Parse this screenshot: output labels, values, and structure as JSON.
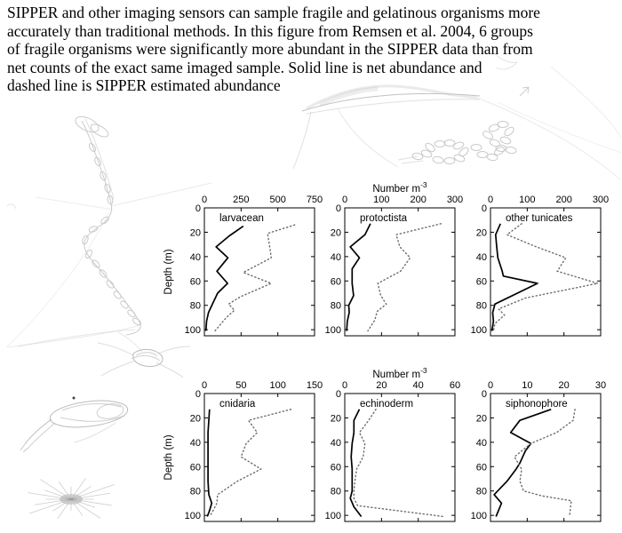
{
  "caption_lines": [
    "SIPPER and other imaging sensors can sample fragile and gelatinous organisms more",
    "accurately than traditional methods. In this figure from Remsen et al. 2004, 6 groups",
    "of fragile organisms were significantly more abundant in the SIPPER data than from",
    "net counts of the exact same imaged sample. Solid line is net abundance and",
    "dashed line is SIPPER estimated abundance"
  ],
  "colors": {
    "axis": "#000000",
    "line_net": "#000000",
    "line_sipper": "#6b6b6b",
    "background": "#ffffff",
    "decor": "#a8a8a8"
  },
  "legend": {
    "solid_line": "net abundance",
    "dashed_line": "SIPPER estimated abundance"
  },
  "chart_data": [
    {
      "type": "line",
      "title": "larvacean",
      "ylabel": "Depth (m)",
      "x_axis_title": null,
      "x_max": 750,
      "x_ticks": [
        0,
        250,
        500,
        750
      ],
      "y_ticks": [
        0,
        20,
        40,
        60,
        80,
        100
      ],
      "y_range": [
        0,
        105
      ],
      "series": [
        {
          "name": "net abundance",
          "style": "solid",
          "points": [
            [
              265,
              15
            ],
            [
              170,
              23
            ],
            [
              80,
              32
            ],
            [
              160,
              41
            ],
            [
              85,
              52
            ],
            [
              158,
              62
            ],
            [
              90,
              70
            ],
            [
              55,
              79
            ],
            [
              28,
              86
            ],
            [
              15,
              93
            ],
            [
              10,
              101
            ]
          ]
        },
        {
          "name": "SIPPER estimated abundance",
          "style": "dotted",
          "points": [
            [
              615,
              14
            ],
            [
              430,
              21
            ],
            [
              450,
              36
            ],
            [
              455,
              41
            ],
            [
              265,
              53
            ],
            [
              455,
              62
            ],
            [
              245,
              73
            ],
            [
              165,
              79
            ],
            [
              205,
              84
            ],
            [
              150,
              90
            ],
            [
              72,
              101
            ]
          ]
        }
      ]
    },
    {
      "type": "line",
      "title": "protoctista",
      "ylabel": null,
      "x_axis_title": {
        "base": "Number m",
        "sup": "-3"
      },
      "x_max": 300,
      "x_ticks": [
        0,
        100,
        200,
        300
      ],
      "y_ticks": [
        0,
        20,
        40,
        60,
        80,
        100
      ],
      "y_range": [
        0,
        105
      ],
      "series": [
        {
          "name": "net abundance",
          "style": "solid",
          "points": [
            [
              70,
              13
            ],
            [
              55,
              22
            ],
            [
              15,
              32
            ],
            [
              40,
              41
            ],
            [
              20,
              50
            ],
            [
              20,
              62
            ],
            [
              24,
              72
            ],
            [
              11,
              80
            ],
            [
              12,
              86
            ],
            [
              7,
              93
            ],
            [
              5,
              101
            ]
          ]
        },
        {
          "name": "SIPPER estimated abundance",
          "style": "dotted",
          "points": [
            [
              262,
              13
            ],
            [
              140,
              22
            ],
            [
              150,
              32
            ],
            [
              178,
              41
            ],
            [
              152,
              52
            ],
            [
              90,
              62
            ],
            [
              98,
              72
            ],
            [
              113,
              79
            ],
            [
              88,
              85
            ],
            [
              82,
              92
            ],
            [
              63,
              101
            ]
          ]
        }
      ]
    },
    {
      "type": "line",
      "title": "other tunicates",
      "ylabel": null,
      "x_axis_title": null,
      "x_max": 300,
      "x_ticks": [
        0,
        100,
        200,
        300
      ],
      "y_ticks": [
        0,
        20,
        40,
        60,
        80,
        100
      ],
      "y_range": [
        0,
        105
      ],
      "series": [
        {
          "name": "net abundance",
          "style": "solid",
          "points": [
            [
              27,
              13
            ],
            [
              14,
              22
            ],
            [
              17,
              32
            ],
            [
              20,
              41
            ],
            [
              32,
              52
            ],
            [
              35,
              56
            ],
            [
              128,
              62
            ],
            [
              12,
              79
            ],
            [
              6,
              86
            ],
            [
              8,
              93
            ],
            [
              4,
              101
            ]
          ]
        },
        {
          "name": "SIPPER estimated abundance",
          "style": "dotted",
          "points": [
            [
              85,
              13
            ],
            [
              45,
              22
            ],
            [
              125,
              32
            ],
            [
              205,
              41
            ],
            [
              182,
              52
            ],
            [
              292,
              62
            ],
            [
              95,
              74
            ],
            [
              22,
              83
            ],
            [
              38,
              88
            ],
            [
              12,
              95
            ],
            [
              8,
              101
            ]
          ]
        }
      ]
    },
    {
      "type": "line",
      "title": "cnidaria",
      "ylabel": "Depth (m)",
      "x_axis_title": null,
      "x_max": 150,
      "x_ticks": [
        0,
        50,
        100,
        150
      ],
      "y_ticks": [
        0,
        20,
        40,
        60,
        80,
        100
      ],
      "y_range": [
        0,
        105
      ],
      "series": [
        {
          "name": "net abundance",
          "style": "solid",
          "points": [
            [
              7,
              13
            ],
            [
              6,
              22
            ],
            [
              5,
              32
            ],
            [
              5,
              41
            ],
            [
              5,
              52
            ],
            [
              5,
              62
            ],
            [
              5,
              72
            ],
            [
              6,
              83
            ],
            [
              10,
              90
            ],
            [
              7,
              96
            ],
            [
              4,
              101
            ]
          ]
        },
        {
          "name": "SIPPER estimated abundance",
          "style": "dotted",
          "points": [
            [
              118,
              13
            ],
            [
              60,
              22
            ],
            [
              72,
              32
            ],
            [
              57,
              41
            ],
            [
              50,
              52
            ],
            [
              77,
              62
            ],
            [
              45,
              72
            ],
            [
              18,
              83
            ],
            [
              17,
              90
            ],
            [
              12,
              96
            ],
            [
              7,
              101
            ]
          ]
        }
      ]
    },
    {
      "type": "line",
      "title": "echinoderm",
      "ylabel": null,
      "x_axis_title": {
        "base": "Number m",
        "sup": "-3"
      },
      "x_max": 60,
      "x_ticks": [
        0,
        20,
        40,
        60
      ],
      "y_ticks": [
        0,
        20,
        40,
        60,
        80,
        100
      ],
      "y_range": [
        0,
        105
      ],
      "series": [
        {
          "name": "net abundance",
          "style": "solid",
          "points": [
            [
              8,
              13
            ],
            [
              5,
              22
            ],
            [
              5,
              32
            ],
            [
              4,
              41
            ],
            [
              3.5,
              52
            ],
            [
              4,
              62
            ],
            [
              4,
              72
            ],
            [
              4,
              80
            ],
            [
              3,
              86
            ],
            [
              5,
              93
            ],
            [
              9,
              101
            ]
          ]
        },
        {
          "name": "SIPPER estimated abundance",
          "style": "dotted",
          "points": [
            [
              17,
              13
            ],
            [
              13,
              22
            ],
            [
              8,
              32
            ],
            [
              11,
              41
            ],
            [
              10,
              52
            ],
            [
              6.5,
              62
            ],
            [
              5.5,
              72
            ],
            [
              5,
              80
            ],
            [
              5,
              86
            ],
            [
              7,
              92
            ],
            [
              54,
              101
            ]
          ]
        }
      ]
    },
    {
      "type": "line",
      "title": "siphonophore",
      "ylabel": null,
      "x_axis_title": null,
      "x_max": 30,
      "x_ticks": [
        0,
        10,
        20,
        30
      ],
      "y_ticks": [
        0,
        20,
        40,
        60,
        80,
        100
      ],
      "y_range": [
        0,
        105
      ],
      "series": [
        {
          "name": "net abundance",
          "style": "solid",
          "points": [
            [
              16.5,
              13
            ],
            [
              8,
              22
            ],
            [
              5.5,
              32
            ],
            [
              11,
              41
            ],
            [
              9.5,
              47
            ],
            [
              8,
              57
            ],
            [
              7,
              62
            ],
            [
              4.5,
              72
            ],
            [
              1,
              83
            ],
            [
              3,
              90
            ],
            [
              1.5,
              101
            ]
          ]
        },
        {
          "name": "SIPPER estimated abundance",
          "style": "dotted",
          "points": [
            [
              23,
              13
            ],
            [
              22.5,
              22
            ],
            [
              18,
              32
            ],
            [
              11,
              41
            ],
            [
              6.5,
              52
            ],
            [
              8.5,
              62
            ],
            [
              8,
              72
            ],
            [
              9,
              80
            ],
            [
              14,
              84
            ],
            [
              22,
              88
            ],
            [
              21.5,
              101
            ]
          ]
        }
      ]
    }
  ]
}
